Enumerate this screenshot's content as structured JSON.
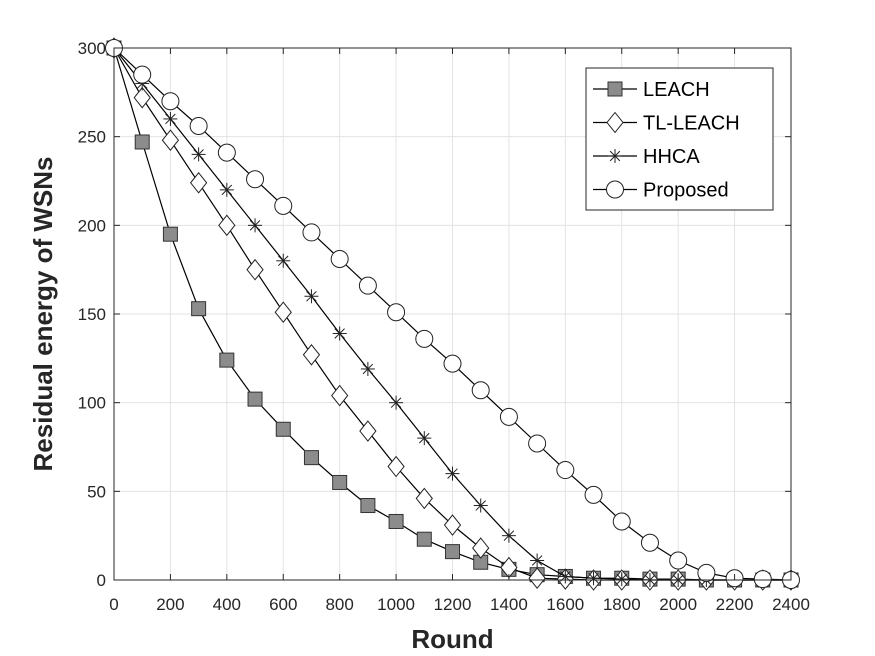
{
  "chart_data": {
    "type": "line",
    "xlabel": "Round",
    "ylabel": "Residual energy of WSNs",
    "xlim": [
      0,
      2400
    ],
    "ylim": [
      0,
      300
    ],
    "xticks": [
      0,
      200,
      400,
      600,
      800,
      1000,
      1200,
      1400,
      1600,
      1800,
      2000,
      2200,
      2400
    ],
    "yticks": [
      0,
      50,
      100,
      150,
      200,
      250,
      300
    ],
    "grid": true,
    "legend_position": "top-right",
    "x": [
      0,
      100,
      200,
      300,
      400,
      500,
      600,
      700,
      800,
      900,
      1000,
      1100,
      1200,
      1300,
      1400,
      1500,
      1600,
      1700,
      1800,
      1900,
      2000,
      2100,
      2200,
      2300,
      2400
    ],
    "series": [
      {
        "name": "LEACH",
        "marker": "square",
        "marker_fill": "#8c8c8c",
        "values": [
          300,
          247,
          195,
          153,
          124,
          102,
          85,
          69,
          55,
          42,
          33,
          23,
          16,
          10,
          6,
          3,
          2,
          1,
          1,
          0.5,
          0.5,
          0,
          0,
          0,
          0
        ]
      },
      {
        "name": "TL-LEACH",
        "marker": "diamond",
        "marker_fill": "#ffffff",
        "values": [
          300,
          272,
          248,
          224,
          200,
          175,
          151,
          127,
          104,
          84,
          64,
          46,
          31,
          18,
          7,
          1,
          0.5,
          0,
          0,
          0,
          0,
          0,
          0,
          0,
          0
        ]
      },
      {
        "name": "HHCA",
        "marker": "asterisk",
        "marker_fill": "#000000",
        "values": [
          300,
          280,
          260,
          240,
          220,
          200,
          180,
          160,
          139,
          119,
          100,
          80,
          60,
          42,
          25,
          11,
          2,
          1,
          0.5,
          0,
          0,
          0,
          0,
          0,
          0
        ]
      },
      {
        "name": "Proposed",
        "marker": "circle",
        "marker_fill": "#ffffff",
        "values": [
          300,
          285,
          270,
          256,
          241,
          226,
          211,
          196,
          181,
          166,
          151,
          136,
          122,
          107,
          92,
          77,
          62,
          48,
          33,
          21,
          11,
          4,
          1,
          0.5,
          0
        ]
      }
    ]
  }
}
